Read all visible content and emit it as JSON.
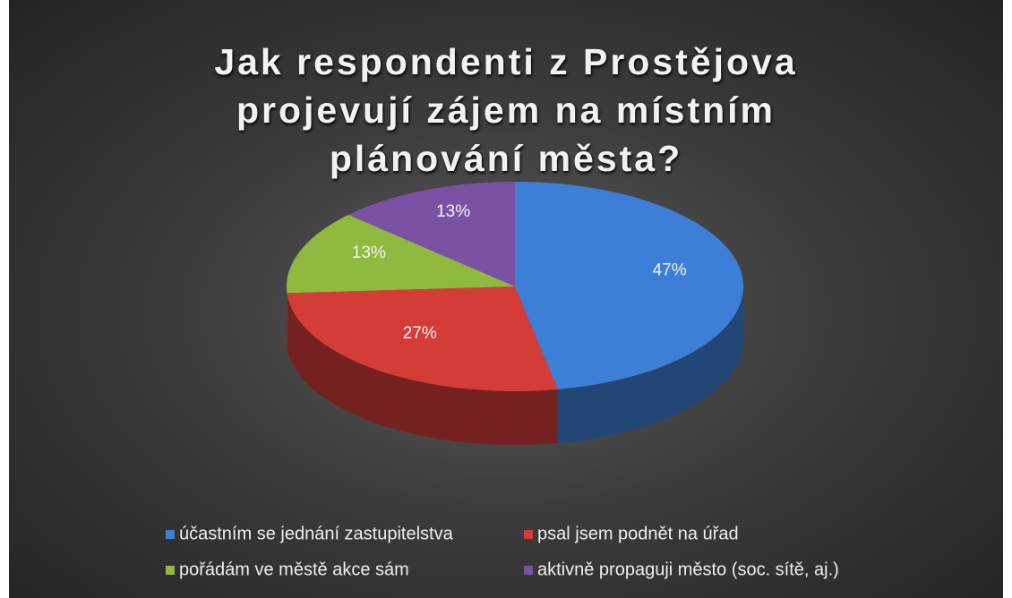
{
  "chart_data": {
    "type": "pie",
    "title": "Jak respondenti z Prostějova projevují zájem na místním plánování města?",
    "categories": [
      "účastním se jednání zastupitelstva",
      "psal jsem podnět na úřad",
      "pořádám ve městě akce sám",
      "aktivně propaguji město (soc. sítě, aj.)"
    ],
    "values": [
      47,
      27,
      13,
      13
    ],
    "value_labels": [
      "47%",
      "27%",
      "13%",
      "13%"
    ],
    "colors": [
      "#3d7fd6",
      "#d43c38",
      "#8fba3f",
      "#7b52a3"
    ]
  }
}
